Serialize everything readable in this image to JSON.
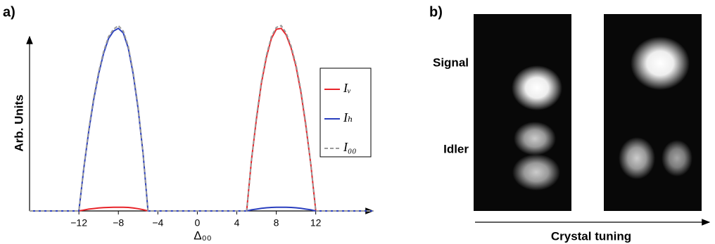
{
  "chart_data": {
    "type": "line",
    "panel_label": "a)",
    "xlabel": "Δ₀₀",
    "ylabel": "Arb. Units",
    "x": [
      -17,
      -12,
      -11.5,
      -11,
      -10.5,
      -10,
      -9.5,
      -9,
      -8.5,
      -8,
      -7.5,
      -7,
      -6.5,
      -6,
      -5.5,
      -5,
      5,
      5.5,
      6,
      6.5,
      7,
      7.5,
      8,
      8.5,
      9,
      9.5,
      10,
      10.5,
      11,
      11.5,
      12,
      17.8
    ],
    "series": [
      {
        "name": "Iᵥ",
        "color": "#e8242a",
        "dashed": false,
        "values": [
          0,
          0,
          0.005,
          0.01,
          0.013,
          0.016,
          0.018,
          0.019,
          0.02,
          0.02,
          0.02,
          0.019,
          0.016,
          0.012,
          0.007,
          0,
          0,
          0.28,
          0.5,
          0.69,
          0.83,
          0.93,
          0.98,
          0.985,
          0.95,
          0.88,
          0.78,
          0.64,
          0.46,
          0.25,
          0,
          0
        ]
      },
      {
        "name": "Iₕ",
        "color": "#2a3fbf",
        "dashed": false,
        "values": [
          0,
          0,
          0.23,
          0.43,
          0.6,
          0.74,
          0.85,
          0.93,
          0.97,
          0.985,
          0.96,
          0.88,
          0.74,
          0.55,
          0.31,
          0,
          0,
          0.006,
          0.01,
          0.014,
          0.017,
          0.019,
          0.02,
          0.02,
          0.02,
          0.019,
          0.017,
          0.014,
          0.01,
          0.006,
          0,
          0
        ]
      },
      {
        "name": "I₀₀",
        "color": "#999999",
        "dashed": true,
        "values": [
          0,
          0,
          0.234,
          0.44,
          0.61,
          0.75,
          0.86,
          0.94,
          0.98,
          1,
          0.97,
          0.89,
          0.75,
          0.56,
          0.31,
          0,
          0,
          0.28,
          0.51,
          0.7,
          0.84,
          0.94,
          0.99,
          1,
          0.96,
          0.89,
          0.79,
          0.65,
          0.47,
          0.25,
          0,
          0
        ]
      }
    ],
    "xlim": [
      -17,
      17.8
    ],
    "ylim": [
      0,
      1.1
    ],
    "xticks": [
      {
        "value": -12,
        "label": "−12"
      },
      {
        "value": -8,
        "label": "−8"
      },
      {
        "value": -4,
        "label": "−4"
      },
      0,
      4,
      8,
      12
    ],
    "legend": "right"
  },
  "panel_b": {
    "label": "b)",
    "rows": [
      "Signal",
      "Idler"
    ],
    "axis_label": "Crystal tuning"
  }
}
